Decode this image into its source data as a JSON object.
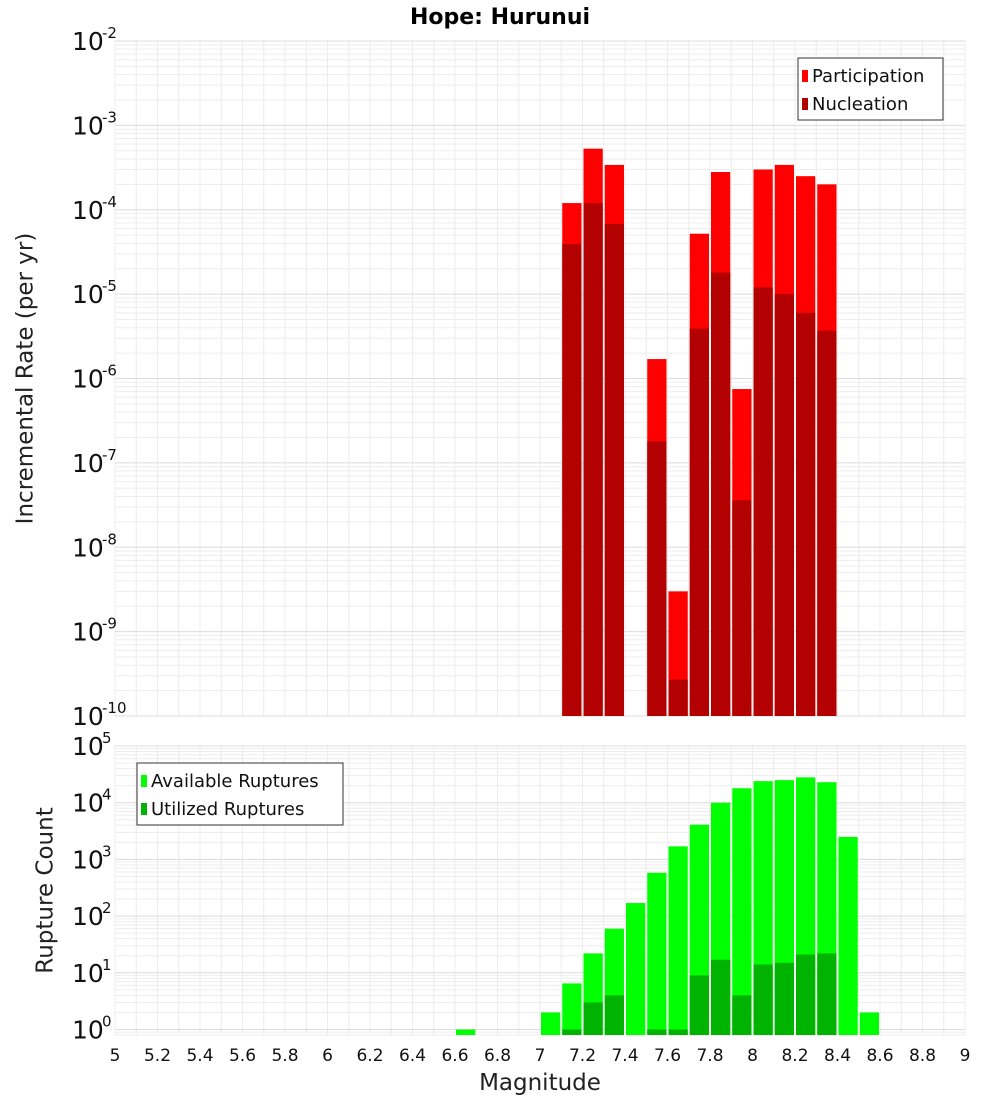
{
  "title": "Hope: Hurunui",
  "xlabel": "Magnitude",
  "x_ticks": [
    "5",
    "5.2",
    "5.4",
    "5.6",
    "5.8",
    "6",
    "6.2",
    "6.4",
    "6.6",
    "6.8",
    "7",
    "7.2",
    "7.4",
    "7.6",
    "7.8",
    "8",
    "8.2",
    "8.4",
    "8.6",
    "8.8",
    "9"
  ],
  "chart_data": [
    {
      "type": "bar",
      "ylabel": "Incremental Rate (per yr)",
      "yscale": "log",
      "ylim": [
        1e-10,
        0.01
      ],
      "xlim": [
        5,
        9
      ],
      "y_ticks": [
        {
          "base": "10",
          "exp": "-2"
        },
        {
          "base": "10",
          "exp": "-3"
        },
        {
          "base": "10",
          "exp": "-4"
        },
        {
          "base": "10",
          "exp": "-5"
        },
        {
          "base": "10",
          "exp": "-6"
        },
        {
          "base": "10",
          "exp": "-7"
        },
        {
          "base": "10",
          "exp": "-8"
        },
        {
          "base": "10",
          "exp": "-9"
        },
        {
          "base": "10",
          "exp": "-10"
        }
      ],
      "legend": {
        "placement": "top-right"
      },
      "bin_width": 0.1,
      "series": [
        {
          "name": "Participation",
          "color": "#ff0000",
          "x": [
            7.15,
            7.25,
            7.35,
            7.55,
            7.65,
            7.75,
            7.85,
            7.95,
            8.05,
            8.15,
            8.25,
            8.35
          ],
          "values": [
            0.00012,
            0.00053,
            0.00034,
            1.7e-06,
            3e-09,
            5.2e-05,
            0.00028,
            7.5e-07,
            0.0003,
            0.00034,
            0.00025,
            0.0002
          ]
        },
        {
          "name": "Nucleation",
          "color": "#b30000",
          "x": [
            7.15,
            7.25,
            7.35,
            7.55,
            7.65,
            7.75,
            7.85,
            7.95,
            8.05,
            8.15,
            8.25,
            8.35
          ],
          "values": [
            3.9e-05,
            0.00012,
            6.8e-05,
            1.8e-07,
            2.7e-10,
            3.9e-06,
            1.8e-05,
            3.6e-08,
            1.2e-05,
            1e-05,
            6e-06,
            3.7e-06
          ]
        }
      ]
    },
    {
      "type": "bar",
      "ylabel": "Rupture Count",
      "yscale": "log",
      "ylim": [
        0.8,
        100000
      ],
      "xlim": [
        5,
        9
      ],
      "y_ticks": [
        {
          "base": "10",
          "exp": "5"
        },
        {
          "base": "10",
          "exp": "4"
        },
        {
          "base": "10",
          "exp": "3"
        },
        {
          "base": "10",
          "exp": "2"
        },
        {
          "base": "10",
          "exp": "1"
        },
        {
          "base": "10",
          "exp": "0"
        }
      ],
      "legend": {
        "placement": "top-left"
      },
      "bin_width": 0.1,
      "series": [
        {
          "name": "Available Ruptures",
          "color": "#00ff00",
          "x": [
            6.65,
            7.05,
            7.15,
            7.25,
            7.35,
            7.45,
            7.55,
            7.65,
            7.75,
            7.85,
            7.95,
            8.05,
            8.15,
            8.25,
            8.35,
            8.45,
            8.55
          ],
          "values": [
            1,
            2,
            6.5,
            22,
            60,
            170,
            580,
            1700,
            4100,
            10000,
            18000,
            24000,
            25000,
            28000,
            23000,
            2500,
            2
          ]
        },
        {
          "name": "Utilized Ruptures",
          "color": "#00b300",
          "x": [
            7.15,
            7.25,
            7.35,
            7.55,
            7.65,
            7.75,
            7.85,
            7.95,
            8.05,
            8.15,
            8.25,
            8.35
          ],
          "values": [
            1,
            3,
            4,
            1,
            1,
            9,
            17,
            4,
            14,
            15,
            21,
            22
          ]
        }
      ]
    }
  ]
}
